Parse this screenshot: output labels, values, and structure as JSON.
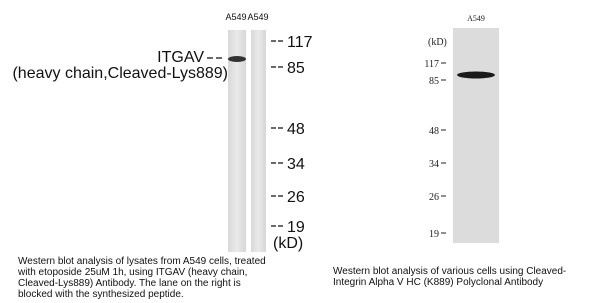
{
  "left_panel": {
    "lanes": [
      "A549",
      "A549"
    ],
    "protein": [
      "ITGAV",
      "(heavy chain,Cleaved-Lys889)"
    ],
    "markers": [
      "117",
      "85",
      "48",
      "34",
      "26",
      "19"
    ],
    "unit": "(kD)",
    "caption": [
      "Western blot analysis of lysates from A549 cells, treated",
      "with etoposide 25uM 1h, using ITGAV (heavy chain,",
      "Cleaved-Lys889) Antibody. The lane on the right is",
      "blocked with the synthesized peptide."
    ]
  },
  "right_panel": {
    "lane": "A549",
    "unit": "(kD)",
    "markers": [
      "117",
      "85",
      "48",
      "34",
      "26",
      "19"
    ],
    "caption": [
      "Western blot analysis of various cells using Cleaved-",
      "Integrin Alpha V HC (K889) Polyclonal Antibody"
    ]
  }
}
